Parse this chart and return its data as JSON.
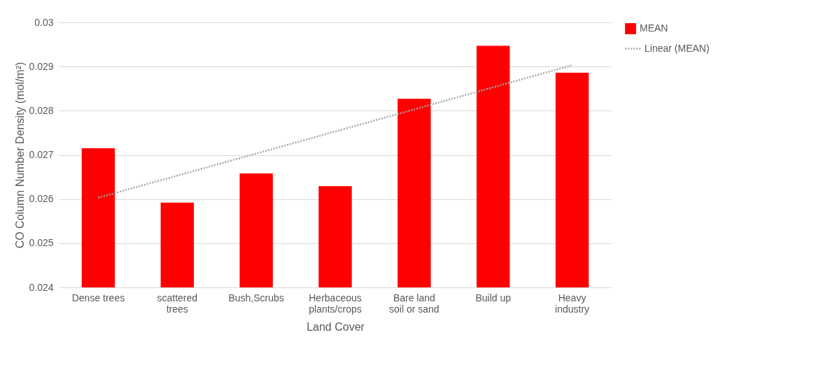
{
  "chart_data": {
    "type": "bar",
    "xlabel": "Land Cover",
    "ylabel": "CO Column Number Density (mol/m²)",
    "categories": [
      "Dense trees",
      "scattered trees",
      "Bush,Scrubs",
      "Herbaceous plants/crops",
      "Bare land soil or sand",
      "Build up",
      "Heavy industry"
    ],
    "series": [
      {
        "name": "MEAN",
        "color": "#ff0000",
        "values": [
          0.02715,
          0.02592,
          0.02658,
          0.02629,
          0.02827,
          0.02947,
          0.02886
        ]
      },
      {
        "name": "Linear (MEAN)",
        "type": "line",
        "color": "#a5a5a5",
        "line_style": "dotted",
        "x": [
          "Dense trees",
          "Heavy industry"
        ],
        "values": [
          0.02603,
          0.02903
        ]
      }
    ],
    "ylim": [
      0.024,
      0.03
    ],
    "yticks": [
      0.024,
      0.025,
      0.026,
      0.027,
      0.028,
      0.029,
      0.03
    ],
    "grid": "y",
    "legend": "right"
  }
}
